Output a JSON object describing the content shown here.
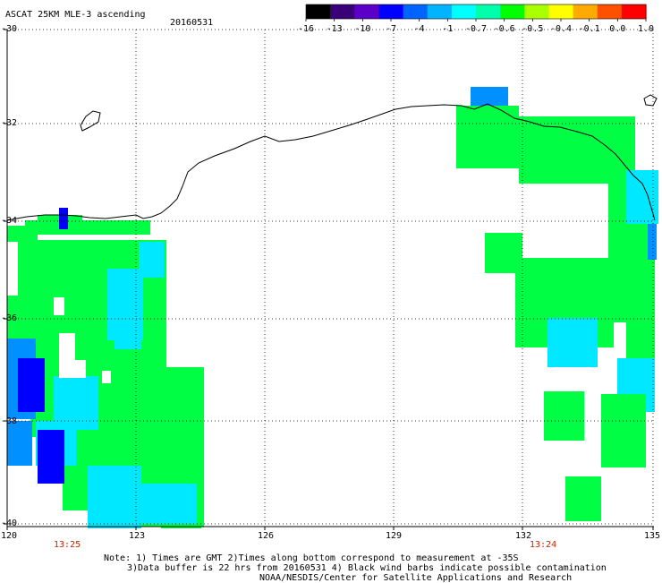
{
  "header": {
    "title": "ASCAT 25KM MLE-3 ascending",
    "date": "20160531"
  },
  "colorbar": {
    "labels": [
      "-16",
      "-13",
      "-10",
      "-7",
      "-4",
      "-1",
      "-0.7",
      "-0.6",
      "-0.5",
      "-0.4",
      "-0.1",
      "0.0",
      "1.0"
    ],
    "colors": [
      "#000000",
      "#3a0078",
      "#5a00c8",
      "#0000ff",
      "#0064ff",
      "#00b4ff",
      "#00ffff",
      "#00ffaa",
      "#00ff00",
      "#aaff00",
      "#ffff00",
      "#ffaa00",
      "#ff5000",
      "#ff0000"
    ]
  },
  "axes": {
    "lat_labels": [
      "-30",
      "-32",
      "-34",
      "-36",
      "-38",
      "-40"
    ],
    "lon_labels": [
      "120",
      "123",
      "126",
      "129",
      "132",
      "135"
    ]
  },
  "pass_times": [
    "13:25",
    "13:24"
  ],
  "footer": {
    "line1": "Note: 1) Times are GMT 2)Times along bottom correspond to measurement at -35S",
    "line2": "3)Data buffer is 22 hrs from 20160531 4) Black wind barbs indicate possible contamination",
    "line3": "NOAA/NESDIS/Center for Satellite Applications and Research"
  },
  "field_colors": {
    "green": "#00ff44",
    "cyan": "#00e8ff",
    "blue": "#0000ff",
    "light_blue": "#0090ff"
  }
}
